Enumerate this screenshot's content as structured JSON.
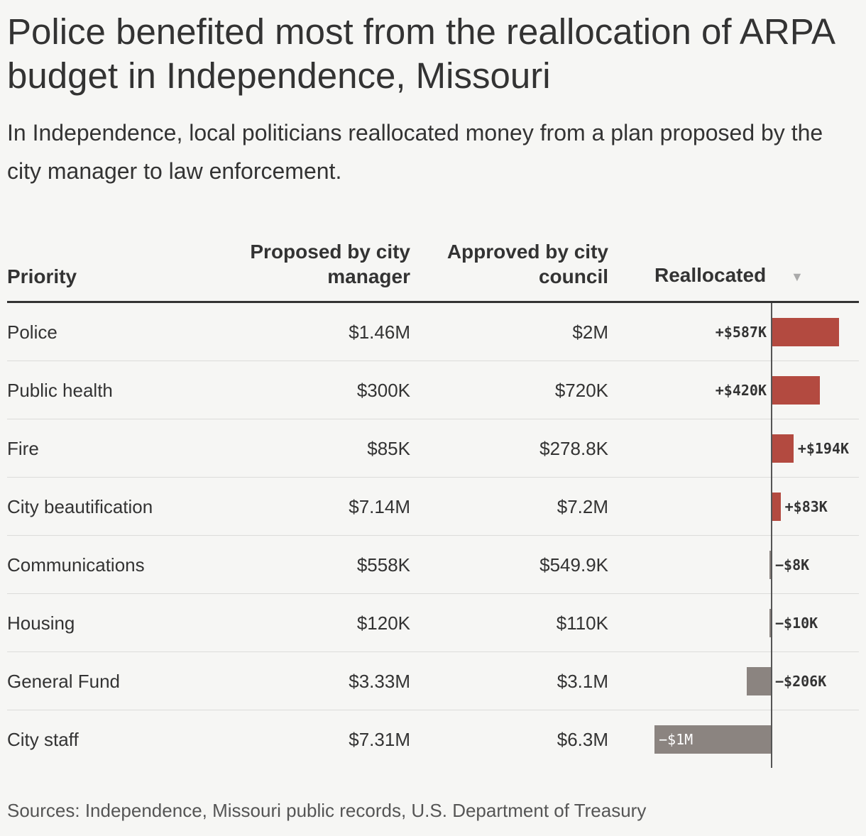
{
  "title": "Police benefited most from the reallocation of ARPA budget in Independence, Missouri",
  "subtitle": "In Independence, local politicians reallocated money from a plan proposed by the city manager to law enforcement.",
  "source": "Sources: Independence, Missouri public records, U.S. Department of Treasury",
  "colors": {
    "positive": "#b34a40",
    "negative": "#8b8480"
  },
  "chart_data": {
    "type": "table",
    "columns": [
      "Priority",
      "Proposed by city manager",
      "Approved by city council",
      "Reallocated"
    ],
    "sort_indicator": "▼",
    "rows": [
      {
        "priority": "Police",
        "proposed": "$1.46M",
        "approved": "$2M",
        "reallocated_label": "+$587K",
        "reallocated_value": 587000
      },
      {
        "priority": "Public health",
        "proposed": "$300K",
        "approved": "$720K",
        "reallocated_label": "+$420K",
        "reallocated_value": 420000
      },
      {
        "priority": "Fire",
        "proposed": "$85K",
        "approved": "$278.8K",
        "reallocated_label": "+$194K",
        "reallocated_value": 194000
      },
      {
        "priority": "City beautification",
        "proposed": "$7.14M",
        "approved": "$7.2M",
        "reallocated_label": "+$83K",
        "reallocated_value": 83000
      },
      {
        "priority": "Communications",
        "proposed": "$558K",
        "approved": "$549.9K",
        "reallocated_label": "−$8K",
        "reallocated_value": -8000
      },
      {
        "priority": "Housing",
        "proposed": "$120K",
        "approved": "$110K",
        "reallocated_label": "−$10K",
        "reallocated_value": -10000
      },
      {
        "priority": "General Fund",
        "proposed": "$3.33M",
        "approved": "$3.1M",
        "reallocated_label": "−$206K",
        "reallocated_value": -206000
      },
      {
        "priority": "City staff",
        "proposed": "$7.31M",
        "approved": "$6.3M",
        "reallocated_label": "−$1M",
        "reallocated_value": -1000000
      }
    ]
  }
}
